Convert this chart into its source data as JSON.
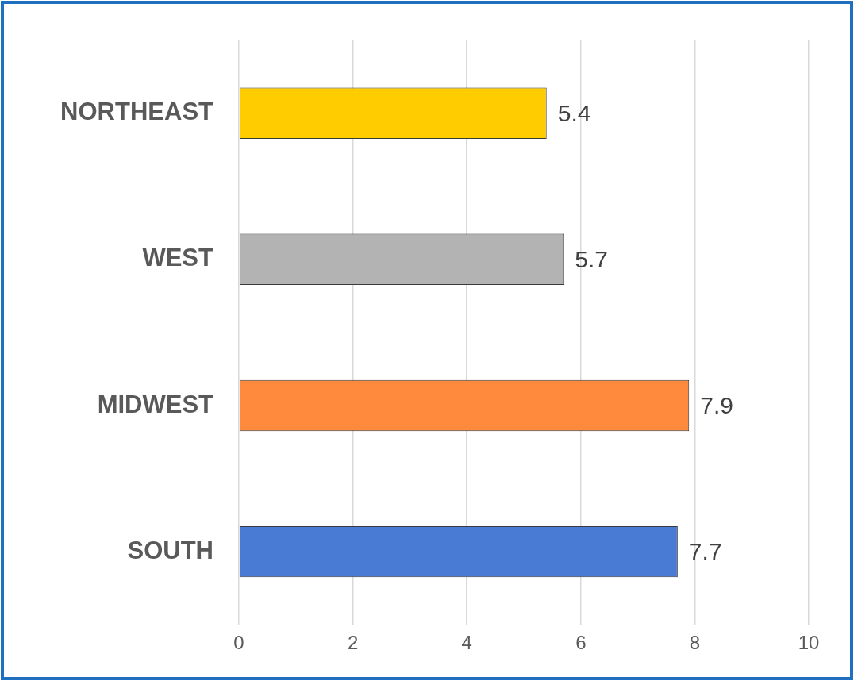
{
  "chart_data": {
    "type": "bar",
    "orientation": "horizontal",
    "categories": [
      "NORTHEAST",
      "WEST",
      "MIDWEST",
      "SOUTH"
    ],
    "values": [
      5.4,
      5.7,
      7.9,
      7.7
    ],
    "colors": [
      "#ffcc00",
      "#b3b3b3",
      "#ff8a3d",
      "#4a7bd4"
    ],
    "xlim": [
      0,
      10
    ],
    "xticks": [
      0,
      2,
      4,
      6,
      8,
      10
    ],
    "grid": "x",
    "legend": false,
    "data_labels": true
  }
}
